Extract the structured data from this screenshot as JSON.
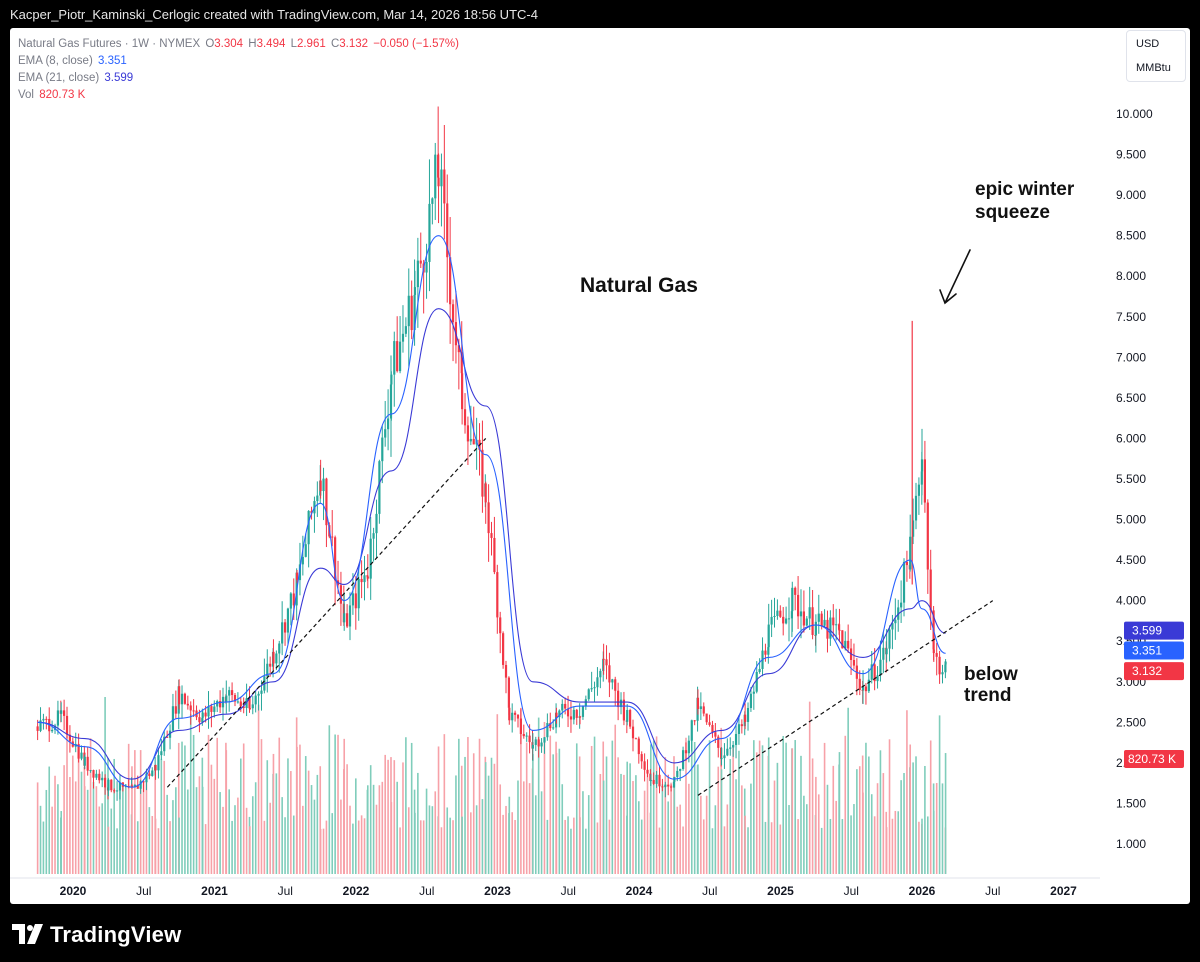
{
  "header": {
    "credit": "Kacper_Piotr_Kaminski_Cerlogic created with TradingView.com, Mar 14, 2026 18:56 UTC-4"
  },
  "legend": {
    "symbol": "Natural Gas Futures · 1W · NYMEX",
    "o_label": "O",
    "o_value": "3.304",
    "h_label": "H",
    "h_value": "3.494",
    "l_label": "L",
    "l_value": "2.961",
    "c_label": "C",
    "c_value": "3.132",
    "change": "−0.050 (−1.57%)",
    "ema8_label": "EMA (8, close)",
    "ema8_value": "3.351",
    "ema21_label": "EMA (21, close)",
    "ema21_value": "3.599",
    "vol_label": "Vol",
    "vol_value": "820.73 K"
  },
  "units": {
    "currency": "USD",
    "unit": "MMBtu"
  },
  "price_tags": {
    "ema21": "3.599",
    "ema8": "3.351",
    "close": "3.132",
    "volume": "820.73 K"
  },
  "annotations": {
    "title": "Natural Gas",
    "squeeze_line1": "epic winter",
    "squeeze_line2": "squeeze",
    "below_line1": "below",
    "below_line2": "trend"
  },
  "footer": {
    "brand": "TradingView"
  },
  "colors": {
    "up": "#26a69a",
    "down": "#f23645",
    "ema8": "#2962ff",
    "ema21": "#3a3ad6",
    "vol_up": "#7fcdbb",
    "vol_down": "#f7a1a8"
  },
  "chart_data": {
    "type": "line",
    "title": "Natural Gas Futures · 1W · NYMEX",
    "yaxis_ticks": [
      "10.000",
      "9.500",
      "9.000",
      "8.500",
      "8.000",
      "7.500",
      "7.000",
      "6.500",
      "6.000",
      "5.500",
      "5.000",
      "4.500",
      "4.000",
      "3.500",
      "3.000",
      "2.500",
      "2.000",
      "1.500",
      "1.000"
    ],
    "xaxis_ticks": [
      "2020",
      "Jul",
      "2021",
      "Jul",
      "2022",
      "Jul",
      "2023",
      "Jul",
      "2024",
      "Jul",
      "2025",
      "Jul",
      "2026",
      "Jul",
      "2027"
    ],
    "ylim": [
      0.6,
      10.6
    ],
    "series": [
      {
        "name": "Natural Gas Futures",
        "x": [
          "2019-10",
          "2019-12",
          "2020-02",
          "2020-04",
          "2020-06",
          "2020-08",
          "2020-10",
          "2020-12",
          "2021-02",
          "2021-04",
          "2021-06",
          "2021-08",
          "2021-10",
          "2021-12",
          "2022-02",
          "2022-04",
          "2022-06",
          "2022-08",
          "2022-10",
          "2022-12",
          "2023-02",
          "2023-04",
          "2023-06",
          "2023-08",
          "2023-10",
          "2023-12",
          "2024-02",
          "2024-04",
          "2024-06",
          "2024-08",
          "2024-10",
          "2024-12",
          "2025-02",
          "2025-04",
          "2025-06",
          "2025-08",
          "2025-10",
          "2025-12",
          "2026-01",
          "2026-02",
          "2026-03"
        ],
        "y": [
          2.45,
          2.55,
          2.0,
          1.72,
          1.65,
          1.95,
          2.85,
          2.55,
          2.85,
          2.65,
          3.35,
          4.2,
          5.6,
          3.7,
          4.4,
          6.8,
          7.8,
          9.3,
          6.5,
          5.3,
          2.6,
          2.2,
          2.6,
          2.65,
          3.2,
          2.55,
          1.8,
          1.75,
          2.7,
          2.1,
          2.5,
          3.6,
          4.0,
          3.7,
          3.6,
          2.9,
          3.4,
          4.6,
          5.8,
          3.3,
          3.132
        ]
      },
      {
        "name": "EMA (8, close)",
        "x": [
          "2019-10",
          "2020-02",
          "2020-06",
          "2020-10",
          "2021-02",
          "2021-06",
          "2021-10",
          "2021-12",
          "2022-04",
          "2022-08",
          "2022-12",
          "2023-04",
          "2023-08",
          "2023-12",
          "2024-04",
          "2024-08",
          "2024-12",
          "2025-04",
          "2025-08",
          "2025-12",
          "2026-01",
          "2026-03"
        ],
        "y": [
          2.5,
          2.2,
          1.7,
          2.55,
          2.75,
          3.1,
          5.2,
          4.0,
          6.3,
          8.5,
          5.8,
          2.4,
          2.7,
          2.7,
          1.8,
          2.3,
          3.3,
          3.7,
          3.1,
          4.5,
          3.9,
          3.351
        ]
      },
      {
        "name": "EMA (21, close)",
        "x": [
          "2019-10",
          "2020-02",
          "2020-06",
          "2020-10",
          "2021-02",
          "2021-06",
          "2021-10",
          "2021-12",
          "2022-04",
          "2022-08",
          "2022-12",
          "2023-04",
          "2023-08",
          "2023-12",
          "2024-04",
          "2024-08",
          "2024-12",
          "2025-04",
          "2025-08",
          "2025-12",
          "2026-01",
          "2026-03"
        ],
        "y": [
          2.5,
          2.3,
          1.8,
          2.4,
          2.6,
          3.0,
          4.4,
          4.2,
          5.6,
          7.6,
          6.4,
          3.0,
          2.75,
          2.75,
          2.0,
          2.4,
          3.1,
          3.7,
          3.3,
          3.9,
          4.0,
          3.599
        ]
      }
    ],
    "trendlines": [
      {
        "from": [
          "2020-09",
          1.7
        ],
        "to": [
          "2022-12",
          6.0
        ]
      },
      {
        "from": [
          "2024-06",
          1.6
        ],
        "to": [
          "2026-07",
          4.0
        ]
      }
    ],
    "grid": false,
    "legend": "top-left"
  }
}
